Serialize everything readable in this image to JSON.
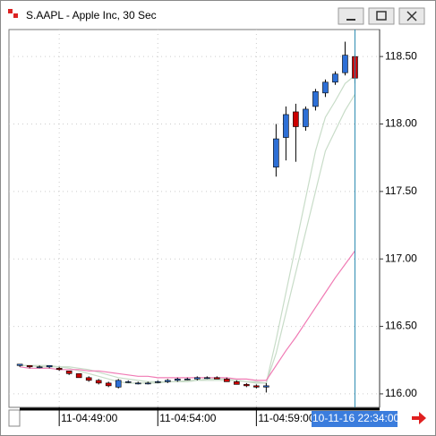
{
  "window": {
    "title": "S.AAPL - Apple Inc, 30 Sec"
  },
  "chart_data": {
    "type": "candlestick",
    "open": [
      116.21,
      116.21,
      116.2,
      116.2,
      116.19,
      116.17,
      116.15,
      116.12,
      116.1,
      116.08,
      116.05,
      116.09,
      116.08,
      116.08,
      116.09,
      116.09,
      116.1,
      116.11,
      116.11,
      116.12,
      116.12,
      116.11,
      116.09,
      116.07,
      116.06,
      116.05,
      117.68,
      117.9,
      118.09,
      117.98,
      118.13,
      118.23,
      118.31,
      118.38,
      118.5
    ],
    "high": [
      116.22,
      116.21,
      116.21,
      116.21,
      116.2,
      116.17,
      116.15,
      116.13,
      116.11,
      116.09,
      116.11,
      116.1,
      116.09,
      116.09,
      116.1,
      116.11,
      116.12,
      116.12,
      116.13,
      116.13,
      116.13,
      116.12,
      116.1,
      116.08,
      116.07,
      116.08,
      118.0,
      118.13,
      118.15,
      118.13,
      118.26,
      118.33,
      118.39,
      118.61,
      118.52
    ],
    "low": [
      116.2,
      116.19,
      116.19,
      116.19,
      116.17,
      116.14,
      116.12,
      116.09,
      116.07,
      116.05,
      116.04,
      116.08,
      116.07,
      116.07,
      116.08,
      116.08,
      116.09,
      116.1,
      116.1,
      116.11,
      116.11,
      116.09,
      116.07,
      116.05,
      116.04,
      116.01,
      117.61,
      117.73,
      117.72,
      117.95,
      118.1,
      118.2,
      118.29,
      118.36,
      118.3
    ],
    "close": [
      116.22,
      116.2,
      116.2,
      116.21,
      116.18,
      116.15,
      116.12,
      116.1,
      116.08,
      116.06,
      116.1,
      116.09,
      116.08,
      116.08,
      116.09,
      116.1,
      116.11,
      116.11,
      116.12,
      116.12,
      116.11,
      116.09,
      116.07,
      116.06,
      116.05,
      116.06,
      117.89,
      118.07,
      117.98,
      118.11,
      118.24,
      118.31,
      118.37,
      118.51,
      118.34
    ],
    "up_color": "#2d6fd6",
    "down_color": "#cc0000",
    "series": [
      {
        "color": "#c8dcc8",
        "values": [
          116.21,
          116.21,
          116.2,
          116.2,
          116.2,
          116.19,
          116.17,
          116.15,
          116.13,
          116.11,
          116.09,
          116.08,
          116.08,
          116.08,
          116.08,
          116.09,
          116.09,
          116.1,
          116.1,
          116.11,
          116.11,
          116.11,
          116.1,
          116.09,
          116.08,
          116.08,
          116.4,
          116.75,
          117.1,
          117.45,
          117.8,
          118.05,
          118.17,
          118.3,
          118.36
        ]
      },
      {
        "color": "#c8dcc8",
        "values": [
          116.21,
          116.21,
          116.21,
          116.21,
          116.2,
          116.2,
          116.19,
          116.18,
          116.16,
          116.14,
          116.12,
          116.11,
          116.1,
          116.09,
          116.09,
          116.09,
          116.09,
          116.09,
          116.1,
          116.1,
          116.1,
          116.1,
          116.1,
          116.09,
          116.09,
          116.08,
          116.3,
          116.6,
          116.9,
          117.2,
          117.5,
          117.8,
          117.95,
          118.1,
          118.22
        ]
      },
      {
        "color": "#f07ab4",
        "values": [
          116.2,
          116.19,
          116.19,
          116.19,
          116.18,
          116.18,
          116.18,
          116.17,
          116.17,
          116.16,
          116.15,
          116.14,
          116.13,
          116.13,
          116.12,
          116.12,
          116.12,
          116.12,
          116.12,
          116.12,
          116.12,
          116.12,
          116.11,
          116.11,
          116.1,
          116.1,
          116.21,
          116.32,
          116.42,
          116.53,
          116.64,
          116.75,
          116.86,
          116.96,
          117.06
        ]
      }
    ],
    "xlim": [
      -1.1,
      36.5
    ],
    "xticks": [
      {
        "value": 4,
        "label": "11-04:49:00"
      },
      {
        "value": 14,
        "label": "11-04:54:00"
      },
      {
        "value": 24,
        "label": "11-04:59:00"
      }
    ],
    "ylim": [
      115.9,
      118.7
    ],
    "yticks": [
      {
        "value": 116,
        "label": "116.00"
      },
      {
        "value": 116.5,
        "label": "116.50"
      },
      {
        "value": 117,
        "label": "117.00"
      },
      {
        "value": 117.5,
        "label": "117.50"
      },
      {
        "value": 118,
        "label": "118.00"
      },
      {
        "value": 118.5,
        "label": "118.50"
      }
    ],
    "grid": true,
    "cursor_label": "10-11-16 22:34:00"
  }
}
